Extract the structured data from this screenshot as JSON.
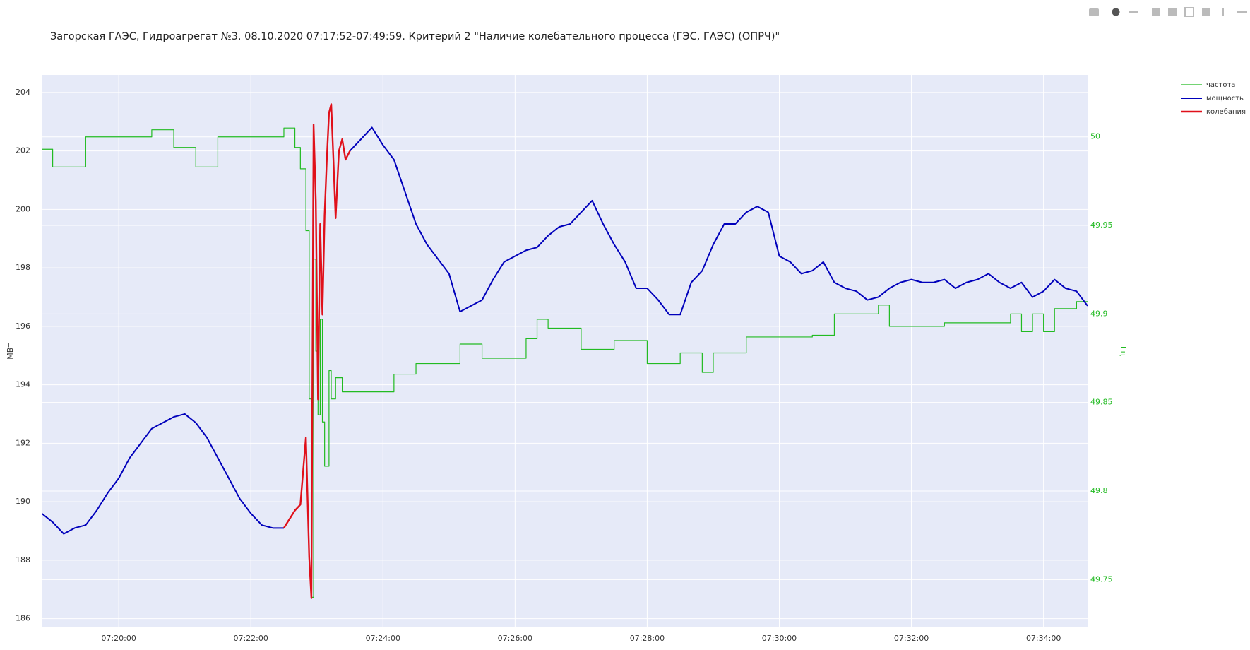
{
  "chart_data": {
    "type": "line",
    "title": "Загорская ГАЭС, Гидроагрегат №3. 08.10.2020 07:17:52-07:49:59. Критерий 2 \"Наличие колебательного процесса (ГЭС, ГАЭС) (ОПРЧ)\"",
    "y_label": "МВт",
    "y2_label": "Гц",
    "x": [
      "07:18:50",
      "07:19:00",
      "07:19:10",
      "07:19:20",
      "07:19:30",
      "07:19:40",
      "07:19:50",
      "07:20:00",
      "07:20:10",
      "07:20:20",
      "07:20:30",
      "07:20:40",
      "07:20:50",
      "07:21:00",
      "07:21:10",
      "07:21:20",
      "07:21:30",
      "07:21:40",
      "07:21:50",
      "07:22:00",
      "07:22:10",
      "07:22:20",
      "07:22:30",
      "07:22:40",
      "07:22:45",
      "07:22:50",
      "07:22:53",
      "07:22:55",
      "07:22:57",
      "07:22:59",
      "07:23:01",
      "07:23:03",
      "07:23:05",
      "07:23:07",
      "07:23:09",
      "07:23:11",
      "07:23:13",
      "07:23:15",
      "07:23:17",
      "07:23:20",
      "07:23:23",
      "07:23:26",
      "07:23:30",
      "07:23:40",
      "07:23:50",
      "07:24:00",
      "07:24:10",
      "07:24:20",
      "07:24:30",
      "07:24:40",
      "07:24:50",
      "07:25:00",
      "07:25:10",
      "07:25:20",
      "07:25:30",
      "07:25:40",
      "07:25:50",
      "07:26:00",
      "07:26:10",
      "07:26:20",
      "07:26:30",
      "07:26:40",
      "07:26:50",
      "07:27:00",
      "07:27:10",
      "07:27:20",
      "07:27:30",
      "07:27:40",
      "07:27:50",
      "07:28:00",
      "07:28:10",
      "07:28:20",
      "07:28:30",
      "07:28:40",
      "07:28:50",
      "07:29:00",
      "07:29:10",
      "07:29:20",
      "07:29:30",
      "07:29:40",
      "07:29:50",
      "07:30:00",
      "07:30:10",
      "07:30:20",
      "07:30:30",
      "07:30:40",
      "07:30:50",
      "07:31:00",
      "07:31:10",
      "07:31:20",
      "07:31:30",
      "07:31:40",
      "07:31:50",
      "07:32:00",
      "07:32:10",
      "07:32:20",
      "07:32:30",
      "07:32:40",
      "07:32:50",
      "07:33:00",
      "07:33:10",
      "07:33:20",
      "07:33:30",
      "07:33:40",
      "07:33:50",
      "07:34:00",
      "07:34:10",
      "07:34:20",
      "07:34:30",
      "07:34:40"
    ],
    "series": [
      {
        "name": "частота",
        "color": "#22bb22",
        "axis": "y2",
        "line_shape": "hv",
        "width": 1.2,
        "values": [
          49.993,
          49.983,
          49.983,
          49.983,
          50.0,
          50.0,
          50.0,
          50.0,
          50.0,
          50.0,
          50.004,
          50.004,
          49.994,
          49.994,
          49.983,
          49.983,
          50.0,
          50.0,
          50.0,
          50.0,
          50.0,
          50.0,
          50.005,
          49.994,
          49.982,
          49.947,
          49.852,
          49.74,
          49.931,
          49.879,
          49.843,
          49.897,
          49.839,
          49.814,
          49.814,
          49.868,
          49.852,
          49.852,
          49.864,
          49.864,
          49.856,
          49.856,
          49.856,
          49.856,
          49.856,
          49.856,
          49.866,
          49.866,
          49.872,
          49.872,
          49.872,
          49.872,
          49.883,
          49.883,
          49.875,
          49.875,
          49.875,
          49.875,
          49.886,
          49.897,
          49.892,
          49.892,
          49.892,
          49.88,
          49.88,
          49.88,
          49.885,
          49.885,
          49.885,
          49.872,
          49.872,
          49.872,
          49.878,
          49.878,
          49.867,
          49.878,
          49.878,
          49.878,
          49.887,
          49.887,
          49.887,
          49.887,
          49.887,
          49.887,
          49.888,
          49.888,
          49.9,
          49.9,
          49.9,
          49.9,
          49.905,
          49.893,
          49.893,
          49.893,
          49.893,
          49.893,
          49.895,
          49.895,
          49.895,
          49.895,
          49.895,
          49.895,
          49.9,
          49.89,
          49.9,
          49.89,
          49.903,
          49.903,
          49.907,
          49.907
        ]
      },
      {
        "name": "мощность",
        "color": "#0000bb",
        "width": 2,
        "values": [
          189.6,
          189.3,
          188.9,
          189.1,
          189.2,
          189.7,
          190.3,
          190.8,
          191.5,
          192.0,
          192.5,
          192.7,
          192.9,
          193.0,
          192.7,
          192.2,
          191.5,
          190.8,
          190.1,
          189.6,
          189.2,
          189.1,
          189.1,
          null,
          null,
          null,
          null,
          null,
          null,
          null,
          null,
          null,
          null,
          null,
          null,
          null,
          null,
          null,
          null,
          null,
          null,
          null,
          202.0,
          202.4,
          202.8,
          202.2,
          201.7,
          200.6,
          199.5,
          198.8,
          198.3,
          197.8,
          196.5,
          196.7,
          196.9,
          197.6,
          198.2,
          198.4,
          198.6,
          198.7,
          199.1,
          199.4,
          199.5,
          199.9,
          200.3,
          199.5,
          198.8,
          198.2,
          197.3,
          197.3,
          196.9,
          196.4,
          196.4,
          197.5,
          197.9,
          198.8,
          199.5,
          199.5,
          199.9,
          200.1,
          199.9,
          198.4,
          198.2,
          197.8,
          197.9,
          198.2,
          197.5,
          197.3,
          197.2,
          196.9,
          197.0,
          197.3,
          197.5,
          197.6,
          197.5,
          197.5,
          197.6,
          197.3,
          197.5,
          197.6,
          197.8,
          197.5,
          197.3,
          197.5,
          197.0,
          197.2,
          197.6,
          197.3,
          197.2,
          196.7
        ]
      },
      {
        "name": "колебания",
        "color": "#e0101a",
        "width": 2.4,
        "values": [
          null,
          null,
          null,
          null,
          null,
          null,
          null,
          null,
          null,
          null,
          null,
          null,
          null,
          null,
          null,
          null,
          null,
          null,
          null,
          null,
          null,
          null,
          189.1,
          189.7,
          189.9,
          192.2,
          188.1,
          186.7,
          202.9,
          200.3,
          193.5,
          199.5,
          196.4,
          199.8,
          201.7,
          203.3,
          203.6,
          201.7,
          199.7,
          202.0,
          202.4,
          201.7,
          202.0,
          null,
          null,
          null,
          null,
          null,
          null,
          null,
          null,
          null,
          null,
          null,
          null,
          null,
          null,
          null,
          null,
          null,
          null,
          null,
          null,
          null,
          null,
          null,
          null,
          null,
          null,
          null,
          null,
          null,
          null,
          null,
          null,
          null,
          null,
          null,
          null,
          null,
          null,
          null,
          null,
          null,
          null,
          null,
          null,
          null,
          null,
          null,
          null,
          null,
          null,
          null,
          null,
          null,
          null,
          null,
          null,
          null,
          null,
          null,
          null,
          null,
          null,
          null,
          null,
          null,
          null,
          null
        ]
      }
    ],
    "xlim": [
      "07:18:50",
      "07:34:40"
    ],
    "xticks": [
      "07:20:00",
      "07:22:00",
      "07:24:00",
      "07:26:00",
      "07:28:00",
      "07:30:00",
      "07:32:00",
      "07:34:00"
    ],
    "ylim": [
      185.7,
      204.6
    ],
    "yticks": [
      186,
      188,
      190,
      192,
      194,
      196,
      198,
      200,
      202,
      204
    ],
    "y2lim": [
      49.723,
      50.035
    ],
    "y2ticks": [
      49.75,
      49.8,
      49.85,
      49.9,
      49.95,
      50
    ],
    "y2_color": "#22bb22",
    "grid": true,
    "legend": "right"
  }
}
